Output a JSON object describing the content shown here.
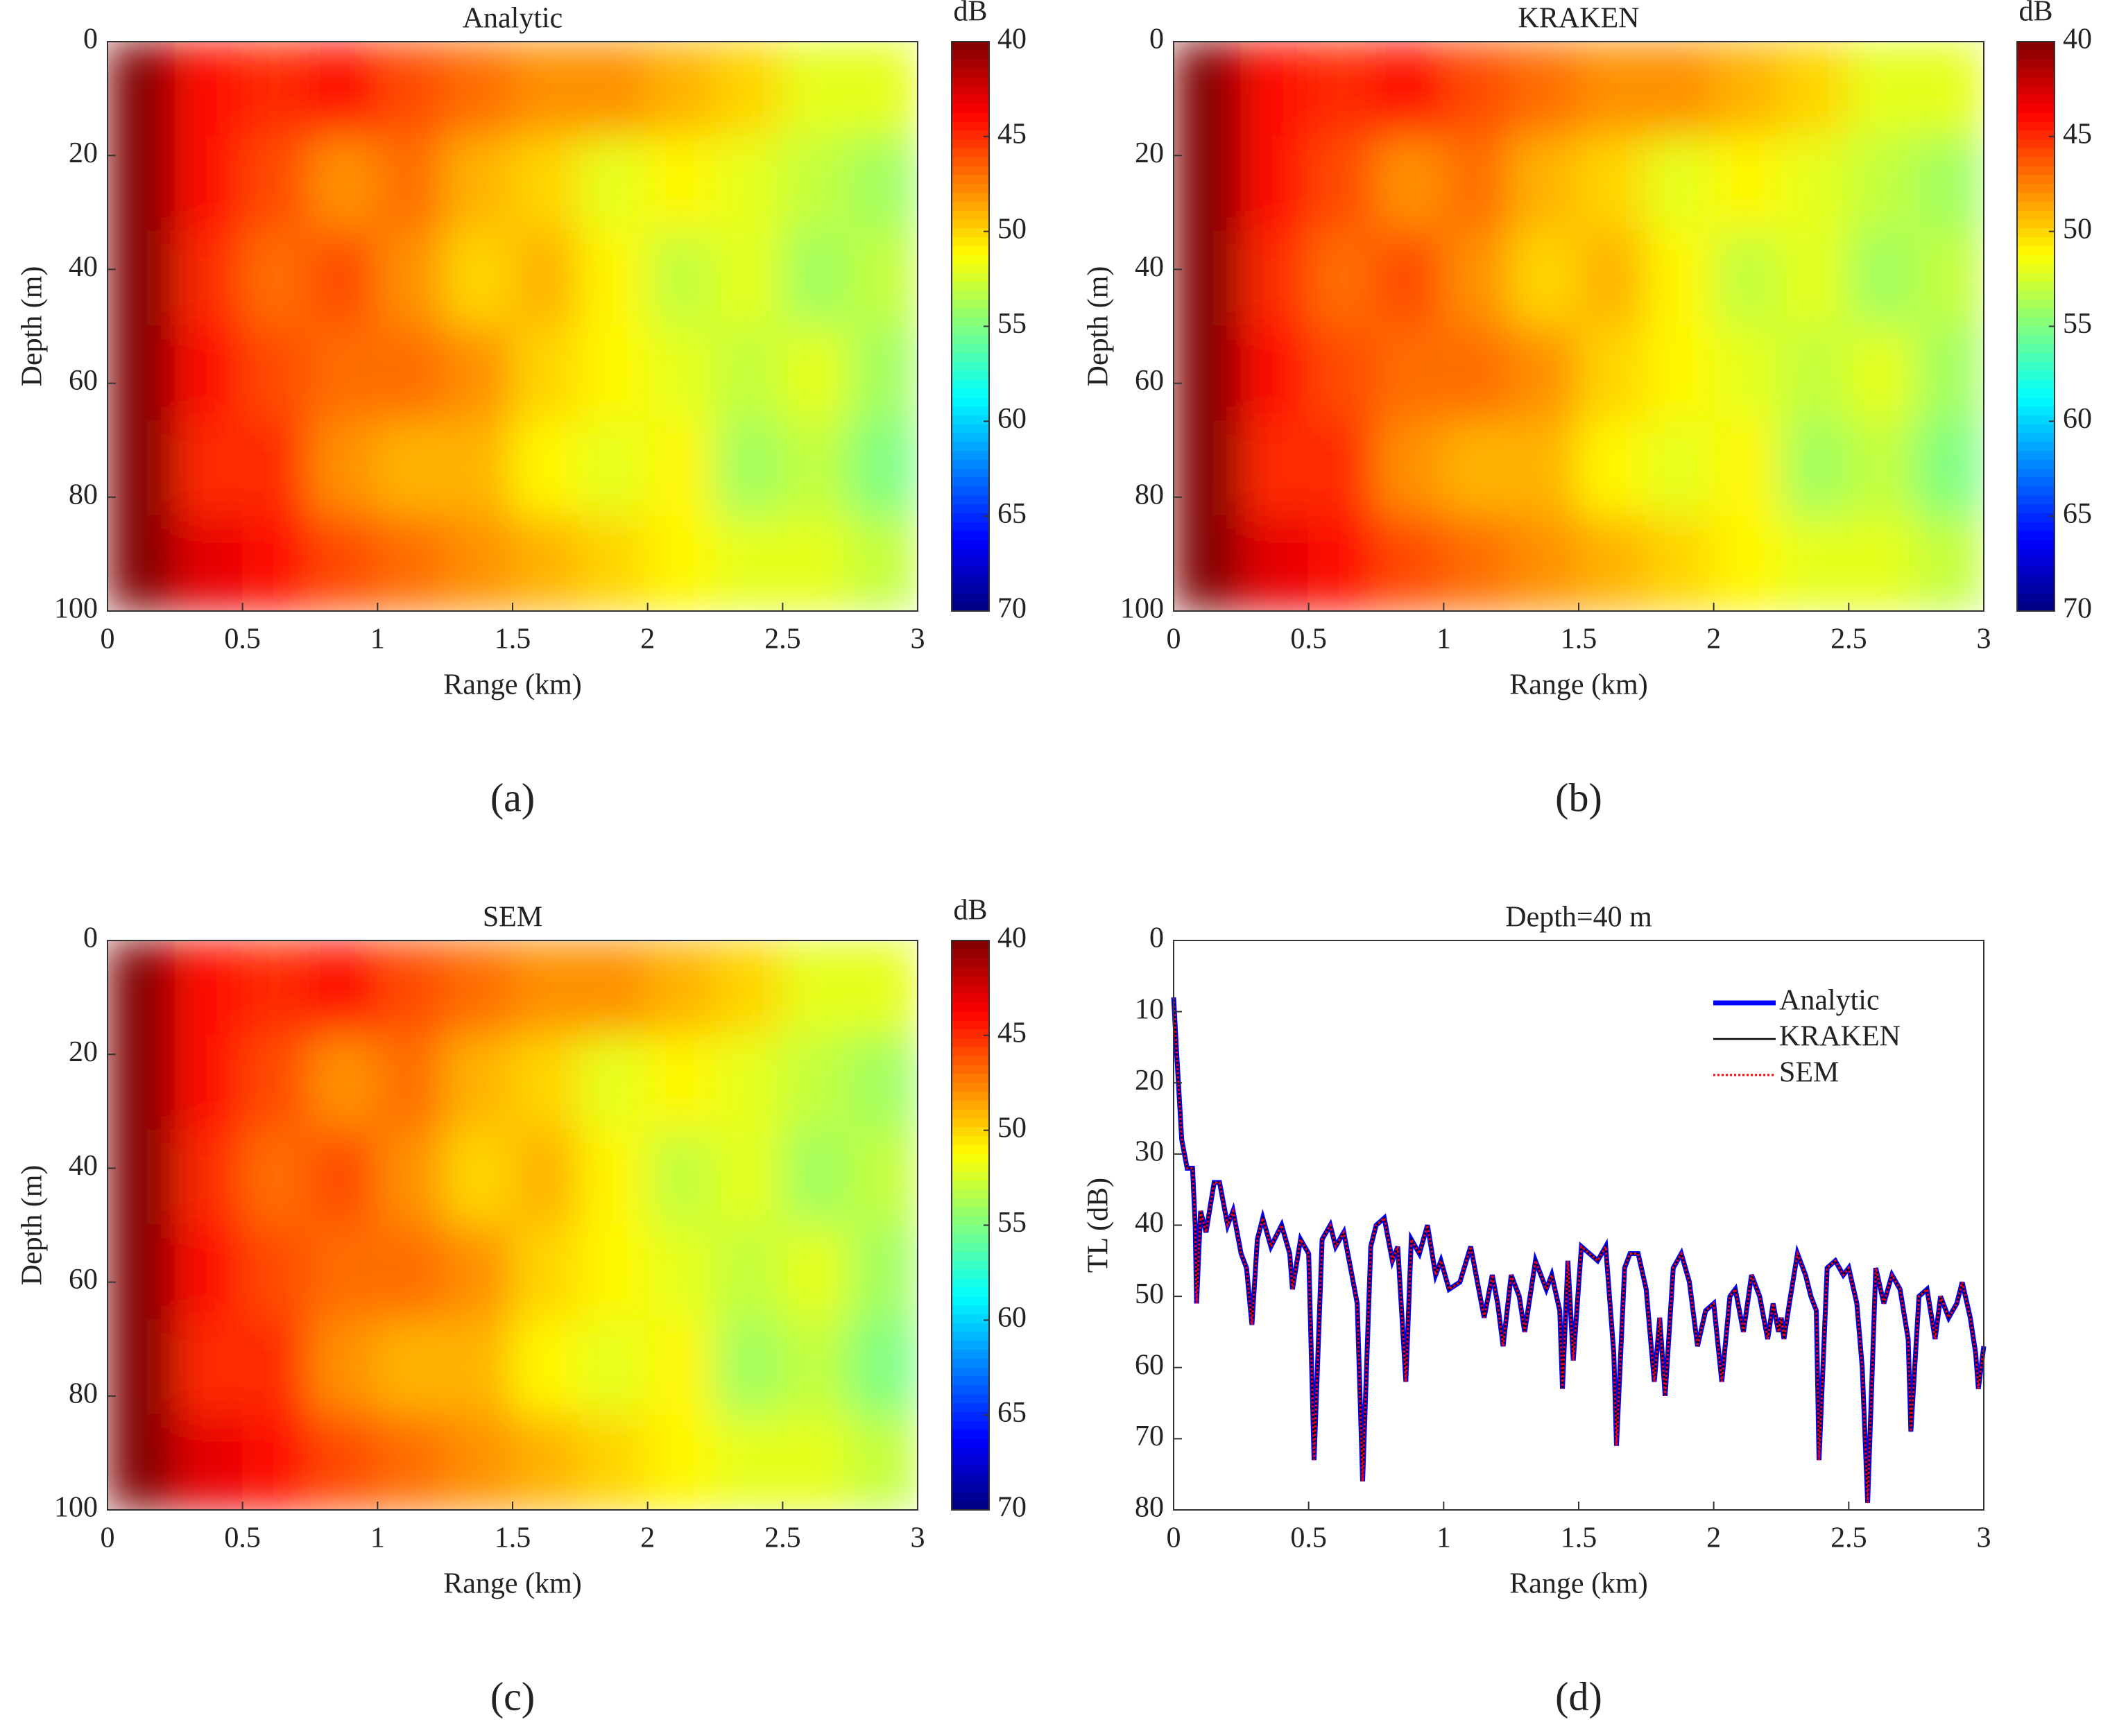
{
  "chart_data": [
    {
      "type": "heatmap",
      "title": "Analytic",
      "xlabel": "Range (km)",
      "ylabel": "Depth (m)",
      "caption": "(a)",
      "xlim": [
        0,
        3
      ],
      "ylim": [
        0,
        100
      ],
      "y_reversed": true,
      "xticks": [
        0,
        0.5,
        1,
        1.5,
        2,
        2.5,
        3
      ],
      "yticks": [
        0,
        20,
        40,
        60,
        80,
        100
      ],
      "colormap": "jet",
      "colorbar": {
        "label": "dB",
        "lim": [
          40,
          70
        ],
        "ticks": [
          40,
          45,
          50,
          55,
          60,
          65,
          70
        ],
        "reversed": true
      },
      "z": [
        [
          40,
          44,
          45,
          44,
          46,
          47,
          48,
          48,
          49,
          50,
          52,
          52
        ],
        [
          40,
          44,
          46,
          48,
          47,
          49,
          50,
          52,
          51,
          52,
          53,
          54
        ],
        [
          40,
          45,
          47,
          46,
          48,
          50,
          49,
          51,
          53,
          52,
          54,
          53
        ],
        [
          40,
          44,
          46,
          47,
          47,
          48,
          50,
          51,
          52,
          53,
          52,
          54
        ],
        [
          40,
          45,
          45,
          48,
          49,
          49,
          51,
          52,
          51,
          54,
          53,
          55
        ],
        [
          40,
          43,
          44,
          46,
          47,
          48,
          49,
          50,
          51,
          52,
          52,
          53
        ]
      ]
    },
    {
      "type": "heatmap",
      "title": "KRAKEN",
      "xlabel": "Range (km)",
      "ylabel": "Depth (m)",
      "caption": "(b)",
      "xlim": [
        0,
        3
      ],
      "ylim": [
        0,
        100
      ],
      "y_reversed": true,
      "xticks": [
        0,
        0.5,
        1,
        1.5,
        2,
        2.5,
        3
      ],
      "yticks": [
        0,
        20,
        40,
        60,
        80,
        100
      ],
      "colormap": "jet",
      "colorbar": {
        "label": "dB",
        "lim": [
          40,
          70
        ],
        "ticks": [
          40,
          45,
          50,
          55,
          60,
          65,
          70
        ],
        "reversed": true
      },
      "z": [
        [
          40,
          44,
          45,
          44,
          46,
          47,
          48,
          48,
          49,
          50,
          52,
          52
        ],
        [
          40,
          44,
          46,
          48,
          47,
          49,
          50,
          52,
          51,
          52,
          53,
          54
        ],
        [
          40,
          45,
          47,
          46,
          48,
          50,
          49,
          51,
          53,
          52,
          54,
          53
        ],
        [
          40,
          44,
          46,
          47,
          47,
          48,
          50,
          51,
          52,
          53,
          52,
          54
        ],
        [
          40,
          45,
          45,
          48,
          49,
          49,
          51,
          52,
          51,
          54,
          53,
          55
        ],
        [
          40,
          43,
          44,
          46,
          47,
          48,
          49,
          50,
          51,
          52,
          52,
          53
        ]
      ]
    },
    {
      "type": "heatmap",
      "title": "SEM",
      "xlabel": "Range (km)",
      "ylabel": "Depth (m)",
      "caption": "(c)",
      "xlim": [
        0,
        3
      ],
      "ylim": [
        0,
        100
      ],
      "y_reversed": true,
      "xticks": [
        0,
        0.5,
        1,
        1.5,
        2,
        2.5,
        3
      ],
      "yticks": [
        0,
        20,
        40,
        60,
        80,
        100
      ],
      "colormap": "jet",
      "colorbar": {
        "label": "dB",
        "lim": [
          40,
          70
        ],
        "ticks": [
          40,
          45,
          50,
          55,
          60,
          65,
          70
        ],
        "reversed": true
      },
      "z": [
        [
          40,
          44,
          45,
          44,
          46,
          47,
          48,
          48,
          49,
          50,
          52,
          52
        ],
        [
          40,
          44,
          46,
          48,
          47,
          49,
          50,
          52,
          51,
          52,
          53,
          54
        ],
        [
          40,
          45,
          47,
          46,
          48,
          50,
          49,
          51,
          53,
          52,
          54,
          53
        ],
        [
          40,
          44,
          46,
          47,
          47,
          48,
          50,
          51,
          52,
          53,
          52,
          54
        ],
        [
          40,
          45,
          45,
          48,
          49,
          49,
          51,
          52,
          51,
          54,
          53,
          55
        ],
        [
          40,
          43,
          44,
          46,
          47,
          48,
          49,
          50,
          51,
          52,
          52,
          53
        ]
      ]
    },
    {
      "type": "line",
      "title": "Depth=40 m",
      "xlabel": "Range (km)",
      "ylabel": "TL (dB)",
      "caption": "(d)",
      "xlim": [
        0,
        3
      ],
      "ylim": [
        0,
        80
      ],
      "y_reversed": true,
      "xticks": [
        0,
        0.5,
        1,
        1.5,
        2,
        2.5,
        3
      ],
      "yticks": [
        0,
        10,
        20,
        30,
        40,
        50,
        60,
        70,
        80
      ],
      "legend": "upper right",
      "x": [
        0,
        0.01,
        0.03,
        0.05,
        0.07,
        0.08,
        0.085,
        0.1,
        0.12,
        0.15,
        0.17,
        0.2,
        0.22,
        0.25,
        0.27,
        0.29,
        0.31,
        0.33,
        0.36,
        0.4,
        0.43,
        0.44,
        0.47,
        0.5,
        0.52,
        0.55,
        0.58,
        0.6,
        0.63,
        0.66,
        0.68,
        0.7,
        0.73,
        0.75,
        0.78,
        0.81,
        0.83,
        0.86,
        0.88,
        0.91,
        0.94,
        0.97,
        0.99,
        1.02,
        1.06,
        1.1,
        1.13,
        1.15,
        1.18,
        1.2,
        1.22,
        1.25,
        1.28,
        1.3,
        1.34,
        1.38,
        1.4,
        1.43,
        1.44,
        1.46,
        1.48,
        1.51,
        1.54,
        1.57,
        1.6,
        1.63,
        1.64,
        1.67,
        1.69,
        1.72,
        1.75,
        1.78,
        1.8,
        1.82,
        1.85,
        1.88,
        1.91,
        1.94,
        1.97,
        2.0,
        2.03,
        2.06,
        2.08,
        2.11,
        2.14,
        2.17,
        2.2,
        2.22,
        2.24,
        2.25,
        2.26,
        2.28,
        2.31,
        2.34,
        2.36,
        2.38,
        2.39,
        2.42,
        2.45,
        2.48,
        2.5,
        2.53,
        2.55,
        2.57,
        2.6,
        2.63,
        2.66,
        2.69,
        2.72,
        2.73,
        2.76,
        2.79,
        2.82,
        2.84,
        2.87,
        2.9,
        2.92,
        2.95,
        2.97,
        2.98,
        3.0
      ],
      "series": [
        {
          "name": "Analytic",
          "color": "#0000ff",
          "style": "solid",
          "width": 7,
          "values": [
            8,
            15,
            28,
            32,
            32,
            40,
            51,
            38,
            41,
            34,
            34,
            40,
            38,
            44,
            46,
            54,
            42,
            39,
            43,
            40,
            44,
            49,
            42,
            44,
            73,
            42,
            40,
            43,
            41,
            47,
            51,
            76,
            43,
            40,
            39,
            45,
            43,
            62,
            42,
            44,
            40,
            47,
            45,
            49,
            48,
            43,
            49,
            53,
            47,
            51,
            57,
            47,
            50,
            55,
            45,
            49,
            47,
            52,
            63,
            45,
            59,
            43,
            44,
            45,
            43,
            58,
            71,
            46,
            44,
            44,
            49,
            62,
            53,
            64,
            46,
            44,
            48,
            57,
            52,
            51,
            62,
            50,
            49,
            55,
            47,
            50,
            56,
            51,
            55,
            53,
            56,
            51,
            44,
            47,
            50,
            52,
            73,
            46,
            45,
            47,
            46,
            51,
            60,
            79,
            46,
            51,
            47,
            49,
            56,
            69,
            50,
            49,
            56,
            50,
            53,
            51,
            48,
            53,
            58,
            63,
            57
          ]
        },
        {
          "name": "KRAKEN",
          "color": "#000000",
          "style": "solid",
          "width": 2.5,
          "values": [
            8,
            15,
            28,
            32,
            32,
            40,
            51,
            38,
            41,
            34,
            34,
            40,
            38,
            44,
            46,
            54,
            42,
            39,
            43,
            40,
            44,
            49,
            42,
            44,
            73,
            42,
            40,
            43,
            41,
            47,
            51,
            76,
            43,
            40,
            39,
            45,
            43,
            62,
            42,
            44,
            40,
            47,
            45,
            49,
            48,
            43,
            49,
            53,
            47,
            51,
            57,
            47,
            50,
            55,
            45,
            49,
            47,
            52,
            63,
            45,
            59,
            43,
            44,
            45,
            43,
            58,
            71,
            46,
            44,
            44,
            49,
            62,
            53,
            64,
            46,
            44,
            48,
            57,
            52,
            51,
            62,
            50,
            49,
            55,
            47,
            50,
            56,
            51,
            55,
            53,
            56,
            51,
            44,
            47,
            50,
            52,
            73,
            46,
            45,
            47,
            46,
            51,
            60,
            79,
            46,
            51,
            47,
            49,
            56,
            69,
            50,
            49,
            56,
            50,
            53,
            51,
            48,
            53,
            58,
            63,
            57
          ]
        },
        {
          "name": "SEM",
          "color": "#ff0000",
          "style": "dotted",
          "width": 3,
          "values": [
            8,
            15,
            28,
            32,
            32,
            40,
            51,
            38,
            41,
            34,
            34,
            40,
            38,
            44,
            46,
            54,
            42,
            39,
            43,
            40,
            44,
            49,
            42,
            44,
            73,
            42,
            40,
            43,
            41,
            47,
            51,
            76,
            43,
            40,
            39,
            45,
            43,
            62,
            42,
            44,
            40,
            47,
            45,
            49,
            48,
            43,
            49,
            53,
            47,
            51,
            57,
            47,
            50,
            55,
            45,
            49,
            47,
            52,
            63,
            45,
            59,
            43,
            44,
            45,
            43,
            58,
            71,
            46,
            44,
            44,
            49,
            62,
            53,
            64,
            46,
            44,
            48,
            57,
            52,
            51,
            62,
            50,
            49,
            55,
            47,
            50,
            56,
            51,
            55,
            53,
            56,
            51,
            44,
            47,
            50,
            52,
            73,
            46,
            45,
            47,
            46,
            51,
            60,
            79,
            46,
            51,
            47,
            49,
            56,
            69,
            50,
            49,
            56,
            50,
            53,
            51,
            48,
            53,
            58,
            63,
            57
          ]
        }
      ]
    }
  ]
}
